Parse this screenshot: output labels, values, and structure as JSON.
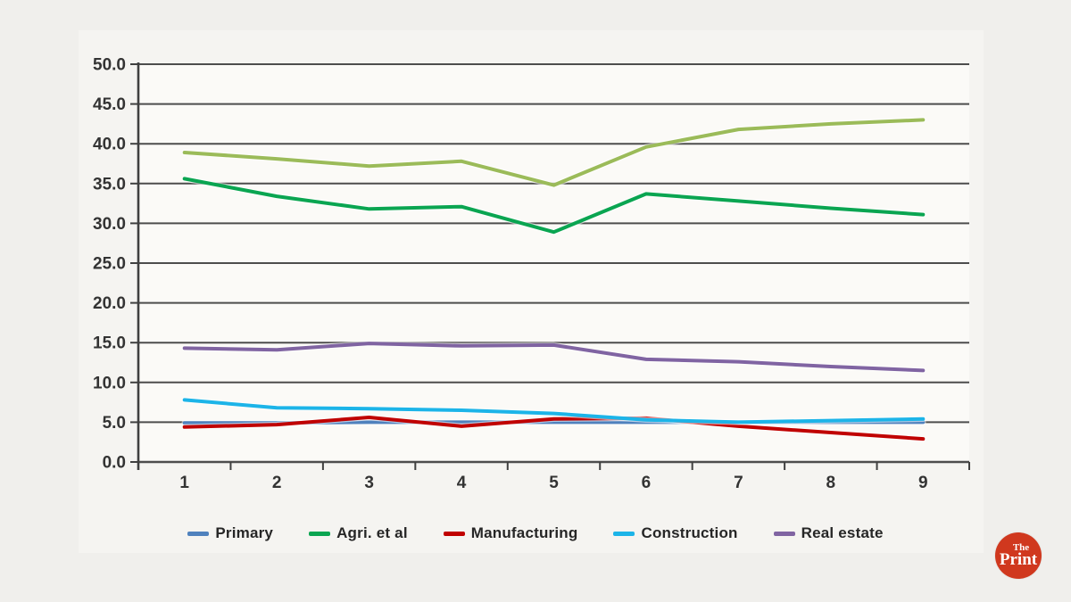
{
  "chart_data": {
    "type": "line",
    "title": "",
    "xlabel": "",
    "ylabel": "",
    "ylim": [
      0,
      50
    ],
    "y_step": 5,
    "grid": true,
    "legend_position": "bottom",
    "y_tick_labels": [
      "0.0",
      "5.0",
      "10.0",
      "15.0",
      "20.0",
      "25.0",
      "30.0",
      "35.0",
      "40.0",
      "45.0",
      "50.0"
    ],
    "categories": [
      "1",
      "2",
      "3",
      "4",
      "5",
      "6",
      "7",
      "8",
      "9"
    ],
    "series": [
      {
        "name": "Primary",
        "color": "#4F81BD",
        "legend": true,
        "values": [
          4.9,
          4.9,
          5.0,
          5.0,
          5.0,
          5.0,
          5.0,
          5.0,
          5.0
        ],
        "note": "mostly hidden behind the 5.0 gridline"
      },
      {
        "name": "Agri. et al",
        "color": "#0AA551",
        "legend": true,
        "values": [
          35.6,
          33.4,
          31.8,
          32.1,
          28.9,
          33.7,
          32.8,
          31.9,
          31.1
        ]
      },
      {
        "name": "Manufacturing",
        "color": "#C00000",
        "legend": true,
        "values": [
          4.4,
          4.7,
          5.6,
          4.5,
          5.4,
          5.5,
          4.5,
          3.7,
          2.9
        ]
      },
      {
        "name": "Construction",
        "color": "#1CB4E8",
        "legend": true,
        "values": [
          7.8,
          6.8,
          6.7,
          6.5,
          6.1,
          5.3,
          5.0,
          5.2,
          5.4
        ]
      },
      {
        "name": "Real estate",
        "color": "#8064A2",
        "legend": true,
        "values": [
          14.3,
          14.1,
          14.9,
          14.6,
          14.7,
          12.9,
          12.6,
          12.0,
          11.5
        ]
      },
      {
        "name": "",
        "color": "#9BBB59",
        "legend": false,
        "values": [
          38.9,
          38.1,
          37.2,
          37.8,
          34.8,
          39.6,
          41.8,
          42.5,
          43.0
        ],
        "note": "no legend entry visible"
      }
    ]
  },
  "legend": {
    "items_from_series": true
  },
  "logo": {
    "the": "The",
    "print": "Print",
    "background": "#d0381e"
  },
  "colors": {
    "page_background": "#f0efec",
    "panel_background": "#f5f4f1",
    "plot_background": "#fbfaf7",
    "gridline": "#4d4d4d",
    "axis": "#404040",
    "tick_label": "#333333",
    "legend_text": "#262626"
  }
}
